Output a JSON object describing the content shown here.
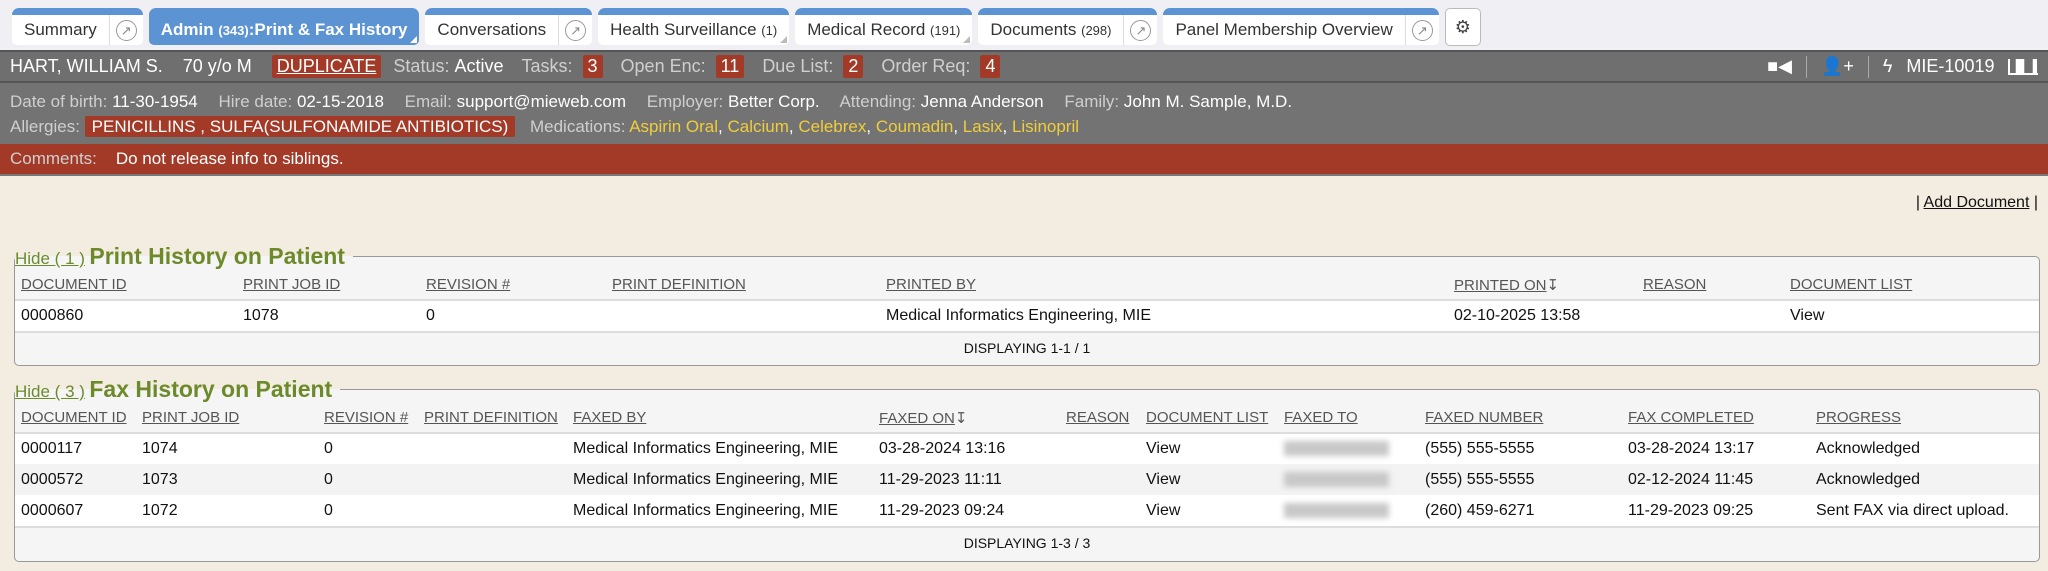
{
  "tabs": [
    {
      "label": "Summary"
    },
    {
      "label": "Admin",
      "count": "(343)",
      "suffix": ":Print & Fax History"
    },
    {
      "label": "Conversations"
    },
    {
      "label": "Health Surveillance",
      "count": "(1)"
    },
    {
      "label": "Medical Record",
      "count": "(191)"
    },
    {
      "label": "Documents",
      "count": "(298)"
    },
    {
      "label": "Panel Membership Overview"
    }
  ],
  "patient": {
    "name": "HART, WILLIAM S.",
    "age_sex": "70 y/o M",
    "duplicate": "DUPLICATE",
    "status_label": "Status:",
    "status": "Active",
    "tasks_label": "Tasks:",
    "tasks": "3",
    "open_enc_label": "Open Enc:",
    "open_enc": "11",
    "due_list_label": "Due List:",
    "due_list": "2",
    "order_req_label": "Order Req:",
    "order_req": "4",
    "mrn": "MIE-10019",
    "dob_label": "Date of birth:",
    "dob": "11-30-1954",
    "hire_label": "Hire date:",
    "hire": "02-15-2018",
    "email_label": "Email:",
    "email": "support@mieweb.com",
    "employer_label": "Employer:",
    "employer": "Better Corp.",
    "attending_label": "Attending:",
    "attending": "Jenna Anderson",
    "family_label": "Family:",
    "family": "John M. Sample, M.D.",
    "allergies_label": "Allergies:",
    "allergies": "PENICILLINS , SULFA(SULFONAMIDE ANTIBIOTICS)",
    "medications_label": "Medications:",
    "medications": [
      "Aspirin Oral",
      "Calcium",
      "Celebrex",
      "Coumadin",
      "Lasix",
      "Lisinopril"
    ],
    "comments_label": "Comments:",
    "comments": "Do not release info to siblings."
  },
  "add_document": "Add Document",
  "print": {
    "hide": "Hide ( 1 )",
    "title": "Print History on Patient",
    "headers": [
      "DOCUMENT ID",
      "PRINT JOB ID",
      "REVISION #",
      "PRINT DEFINITION",
      "PRINTED BY",
      "PRINTED ON",
      "REASON",
      "DOCUMENT LIST"
    ],
    "rows": [
      [
        "0000860",
        "1078",
        "0",
        "",
        "Medical Informatics Engineering, MIE",
        "02-10-2025 13:58",
        "",
        "View"
      ]
    ],
    "footer": "DISPLAYING 1-1 / 1"
  },
  "fax": {
    "hide": "Hide ( 3 )",
    "title": "Fax History on Patient",
    "headers": [
      "DOCUMENT ID",
      "PRINT JOB ID",
      "REVISION #",
      "PRINT DEFINITION",
      "FAXED BY",
      "FAXED ON",
      "REASON",
      "DOCUMENT LIST",
      "FAXED TO",
      "FAXED NUMBER",
      "FAX COMPLETED",
      "PROGRESS"
    ],
    "rows": [
      [
        "0000117",
        "1074",
        "0",
        "",
        "Medical Informatics Engineering, MIE",
        "03-28-2024 13:16",
        "",
        "View",
        "",
        "(555) 555-5555",
        "03-28-2024 13:17",
        "Acknowledged"
      ],
      [
        "0000572",
        "1073",
        "0",
        "",
        "Medical Informatics Engineering, MIE",
        "11-29-2023 11:11",
        "",
        "View",
        "",
        "(555) 555-5555",
        "02-12-2024 11:45",
        "Acknowledged"
      ],
      [
        "0000607",
        "1072",
        "0",
        "",
        "Medical Informatics Engineering, MIE",
        "11-29-2023 09:24",
        "",
        "View",
        "",
        "(260) 459-6271",
        "11-29-2023 09:25",
        "Sent FAX via direct upload."
      ]
    ],
    "footer": "DISPLAYING 1-3 / 3"
  },
  "colors": {
    "tab_blue": "#5b93d3",
    "badge_red": "#a33a28",
    "header_gray": "#6f6f6f",
    "section_green": "#6d8a2b",
    "medication_yellow": "#f0cd3a",
    "content_bg": "#f3ece0"
  }
}
